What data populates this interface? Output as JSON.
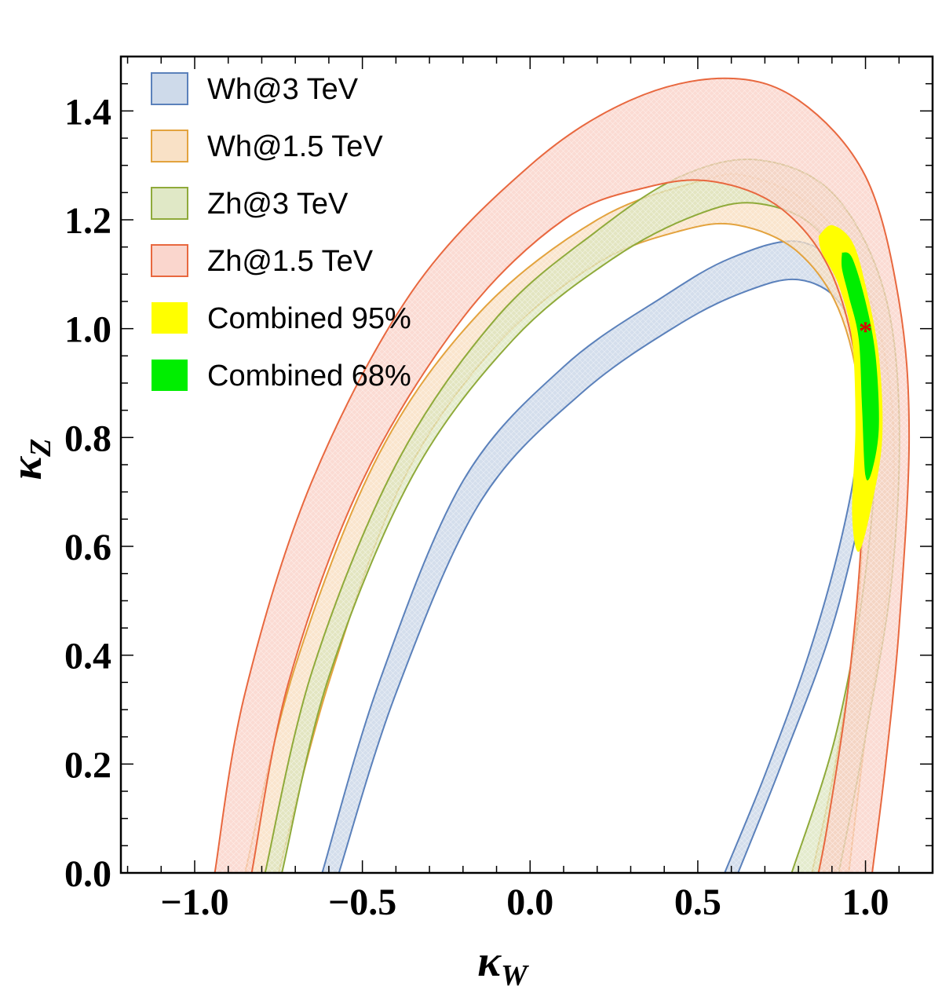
{
  "chart_data": {
    "type": "area",
    "xlabel": "κ",
    "xlabel_sub": "W",
    "ylabel": "κ",
    "ylabel_sub": "Z",
    "xlim": [
      -1.22,
      1.2
    ],
    "ylim": [
      0.0,
      1.5
    ],
    "x_ticks": [
      -1.0,
      -0.5,
      0.0,
      0.5,
      1.0
    ],
    "x_tick_labels": [
      "−1.0",
      "−0.5",
      "0.0",
      "0.5",
      "1.0"
    ],
    "y_ticks": [
      0.0,
      0.2,
      0.4,
      0.6,
      0.8,
      1.0,
      1.2,
      1.4
    ],
    "y_tick_labels": [
      "0.0",
      "0.2",
      "0.4",
      "0.6",
      "0.8",
      "1.0",
      "1.2",
      "1.4"
    ],
    "legend_position": "top-left",
    "series": [
      {
        "name": "Wh@3 TeV",
        "kind": "band",
        "fill": "#c5d3e6",
        "stroke": "#5b81bb",
        "outer": [
          [
            -0.62,
            0.0
          ],
          [
            -0.45,
            0.35
          ],
          [
            -0.2,
            0.72
          ],
          [
            0.1,
            0.93
          ],
          [
            0.4,
            1.06
          ],
          [
            0.6,
            1.13
          ],
          [
            0.8,
            1.16
          ],
          [
            0.95,
            1.1
          ],
          [
            1.02,
            1.0
          ],
          [
            1.04,
            0.85
          ],
          [
            1.0,
            0.7
          ],
          [
            0.9,
            0.45
          ],
          [
            0.75,
            0.2
          ],
          [
            0.62,
            0.0
          ]
        ],
        "inner": [
          [
            -0.57,
            0.0
          ],
          [
            -0.4,
            0.33
          ],
          [
            -0.15,
            0.68
          ],
          [
            0.15,
            0.88
          ],
          [
            0.45,
            1.01
          ],
          [
            0.65,
            1.07
          ],
          [
            0.8,
            1.09
          ],
          [
            0.92,
            1.05
          ],
          [
            0.97,
            0.95
          ],
          [
            0.98,
            0.8
          ],
          [
            0.93,
            0.62
          ],
          [
            0.83,
            0.4
          ],
          [
            0.7,
            0.18
          ],
          [
            0.58,
            0.0
          ]
        ]
      },
      {
        "name": "Wh@1.5 TeV",
        "kind": "band",
        "fill": "#f8dcbc",
        "stroke": "#e3a33e",
        "outer": [
          [
            -0.85,
            0.0
          ],
          [
            -0.7,
            0.38
          ],
          [
            -0.45,
            0.77
          ],
          [
            -0.15,
            1.03
          ],
          [
            0.2,
            1.2
          ],
          [
            0.5,
            1.27
          ],
          [
            0.65,
            1.28
          ],
          [
            0.85,
            1.22
          ],
          [
            1.0,
            1.08
          ],
          [
            1.08,
            0.85
          ],
          [
            1.07,
            0.55
          ],
          [
            1.0,
            0.25
          ],
          [
            0.95,
            0.0
          ]
        ],
        "inner": [
          [
            -0.75,
            0.0
          ],
          [
            -0.6,
            0.35
          ],
          [
            -0.38,
            0.72
          ],
          [
            -0.1,
            0.97
          ],
          [
            0.2,
            1.12
          ],
          [
            0.45,
            1.18
          ],
          [
            0.62,
            1.19
          ],
          [
            0.8,
            1.14
          ],
          [
            0.93,
            1.02
          ],
          [
            0.99,
            0.82
          ],
          [
            0.98,
            0.5
          ],
          [
            0.91,
            0.2
          ],
          [
            0.84,
            0.0
          ]
        ]
      },
      {
        "name": "Zh@3 TeV",
        "kind": "band",
        "fill": "#dbe4bc",
        "stroke": "#8faa3a",
        "outer": [
          [
            -0.79,
            0.0
          ],
          [
            -0.65,
            0.37
          ],
          [
            -0.4,
            0.75
          ],
          [
            -0.1,
            1.02
          ],
          [
            0.2,
            1.18
          ],
          [
            0.45,
            1.28
          ],
          [
            0.68,
            1.31
          ],
          [
            0.9,
            1.25
          ],
          [
            1.05,
            1.08
          ],
          [
            1.1,
            0.85
          ],
          [
            1.08,
            0.55
          ],
          [
            1.0,
            0.25
          ],
          [
            0.92,
            0.0
          ]
        ],
        "inner": [
          [
            -0.74,
            0.0
          ],
          [
            -0.6,
            0.36
          ],
          [
            -0.35,
            0.73
          ],
          [
            -0.05,
            0.98
          ],
          [
            0.25,
            1.13
          ],
          [
            0.5,
            1.21
          ],
          [
            0.68,
            1.23
          ],
          [
            0.86,
            1.18
          ],
          [
            0.98,
            1.04
          ],
          [
            1.03,
            0.82
          ],
          [
            1.0,
            0.55
          ],
          [
            0.91,
            0.25
          ],
          [
            0.78,
            0.0
          ]
        ]
      },
      {
        "name": "Zh@1.5 TeV",
        "kind": "band",
        "fill": "#f9cfc4",
        "stroke": "#e8683f",
        "outer": [
          [
            -0.94,
            0.0
          ],
          [
            -0.85,
            0.33
          ],
          [
            -0.65,
            0.72
          ],
          [
            -0.35,
            1.07
          ],
          [
            0.0,
            1.3
          ],
          [
            0.3,
            1.42
          ],
          [
            0.58,
            1.46
          ],
          [
            0.8,
            1.42
          ],
          [
            1.0,
            1.28
          ],
          [
            1.1,
            1.05
          ],
          [
            1.13,
            0.8
          ],
          [
            1.1,
            0.45
          ],
          [
            1.06,
            0.2
          ],
          [
            1.02,
            0.0
          ]
        ],
        "inner": [
          [
            -0.83,
            0.0
          ],
          [
            -0.72,
            0.35
          ],
          [
            -0.5,
            0.72
          ],
          [
            -0.2,
            1.02
          ],
          [
            0.1,
            1.2
          ],
          [
            0.35,
            1.26
          ],
          [
            0.55,
            1.27
          ],
          [
            0.75,
            1.22
          ],
          [
            0.9,
            1.1
          ],
          [
            0.98,
            0.9
          ],
          [
            0.99,
            0.65
          ],
          [
            0.95,
            0.35
          ],
          [
            0.89,
            0.1
          ],
          [
            0.86,
            0.0
          ]
        ]
      },
      {
        "name": "Combined 95%",
        "kind": "region",
        "fill": "#ffff00",
        "outline": [
          [
            0.86,
            1.17
          ],
          [
            0.9,
            1.19
          ],
          [
            0.96,
            1.16
          ],
          [
            1.0,
            1.08
          ],
          [
            1.04,
            0.95
          ],
          [
            1.05,
            0.8
          ],
          [
            1.02,
            0.68
          ],
          [
            0.98,
            0.59
          ],
          [
            0.96,
            0.66
          ],
          [
            0.97,
            0.82
          ],
          [
            0.96,
            0.98
          ],
          [
            0.92,
            1.08
          ],
          [
            0.87,
            1.14
          ]
        ]
      },
      {
        "name": "Combined 68%",
        "kind": "region",
        "fill": "#00ee00",
        "outline": [
          [
            0.93,
            1.14
          ],
          [
            0.96,
            1.13
          ],
          [
            1.0,
            1.05
          ],
          [
            1.03,
            0.95
          ],
          [
            1.04,
            0.82
          ],
          [
            1.02,
            0.74
          ],
          [
            1.0,
            0.73
          ],
          [
            0.99,
            0.85
          ],
          [
            0.98,
            0.98
          ],
          [
            0.95,
            1.06
          ],
          [
            0.93,
            1.11
          ]
        ]
      }
    ],
    "marker": {
      "symbol": "*",
      "x": 1.0,
      "y": 1.0,
      "color": "#dd0000"
    }
  }
}
